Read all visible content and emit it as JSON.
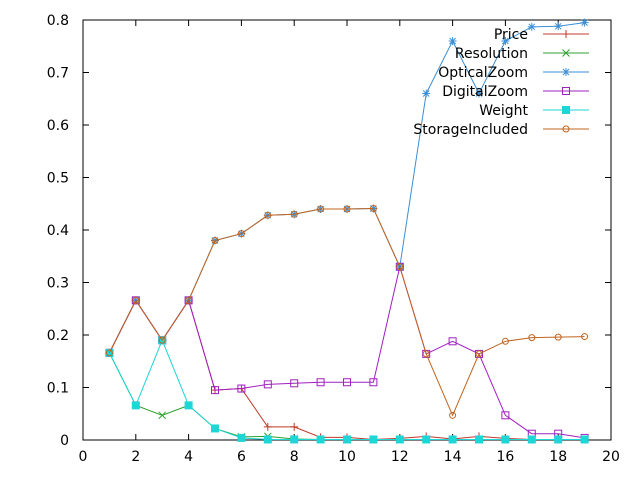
{
  "chart_data": {
    "type": "line",
    "title": "",
    "xlabel": "",
    "ylabel": "",
    "xlim": [
      0,
      20
    ],
    "ylim": [
      0,
      0.8
    ],
    "xticks": [
      0,
      2,
      4,
      6,
      8,
      10,
      12,
      14,
      16,
      18,
      20
    ],
    "yticks": [
      0,
      0.1,
      0.2,
      0.3,
      0.4,
      0.5,
      0.6,
      0.7,
      0.8
    ],
    "xtick_labels": [
      "0",
      "2",
      "4",
      "6",
      "8",
      "10",
      "12",
      "14",
      "16",
      "18",
      "20"
    ],
    "ytick_labels": [
      "0",
      "0.1",
      "0.2",
      "0.3",
      "0.4",
      "0.5",
      "0.6",
      "0.7",
      "0.8"
    ],
    "grid": false,
    "legend_position": "top-right",
    "x": [
      1,
      2,
      3,
      4,
      5,
      6,
      7,
      8,
      9,
      10,
      11,
      12,
      13,
      14,
      15,
      16,
      17,
      18,
      19
    ],
    "series": [
      {
        "name": "Price",
        "color": "#c0392b",
        "marker": "plus",
        "values": [
          0.166,
          0.266,
          0.19,
          0.266,
          0.095,
          0.098,
          0.025,
          0.025,
          0.005,
          0.005,
          0.001,
          0.003,
          0.007,
          0.002,
          0.007,
          0.003,
          0.001,
          0.001,
          0.001
        ]
      },
      {
        "name": "Resolution",
        "color": "#2ca02c",
        "marker": "x",
        "values": [
          0.166,
          0.066,
          0.047,
          0.066,
          0.022,
          0.006,
          0.007,
          0.002,
          0.001,
          0.001,
          0.001,
          0.001,
          0.001,
          0.001,
          0.001,
          0.001,
          0.001,
          0.001,
          0.001
        ]
      },
      {
        "name": "OpticalZoom",
        "color": "#3b8fd4",
        "marker": "star",
        "values": [
          0.166,
          0.266,
          0.19,
          0.266,
          0.38,
          0.393,
          0.428,
          0.43,
          0.44,
          0.44,
          0.441,
          0.33,
          0.66,
          0.76,
          0.66,
          0.76,
          0.787,
          0.788,
          0.795
        ]
      },
      {
        "name": "DigitalZoom",
        "color": "#a020c0",
        "marker": "square-open",
        "values": [
          0.166,
          0.266,
          0.19,
          0.266,
          0.095,
          0.098,
          0.106,
          0.108,
          0.11,
          0.11,
          0.11,
          0.33,
          0.164,
          0.188,
          0.164,
          0.047,
          0.012,
          0.012,
          0.004
        ]
      },
      {
        "name": "Weight",
        "color": "#1ed6d6",
        "marker": "square-filled",
        "values": [
          0.166,
          0.066,
          0.19,
          0.066,
          0.022,
          0.004,
          0.001,
          0.001,
          0.001,
          0.001,
          0.001,
          0.001,
          0.001,
          0.001,
          0.001,
          0.001,
          0.001,
          0.001,
          0.001
        ]
      },
      {
        "name": "StorageIncluded",
        "color": "#c0641e",
        "marker": "circle-open",
        "values": [
          0.166,
          0.266,
          0.19,
          0.266,
          0.38,
          0.393,
          0.428,
          0.43,
          0.44,
          0.44,
          0.441,
          0.33,
          0.164,
          0.047,
          0.164,
          0.188,
          0.195,
          0.196,
          0.197
        ]
      }
    ]
  }
}
